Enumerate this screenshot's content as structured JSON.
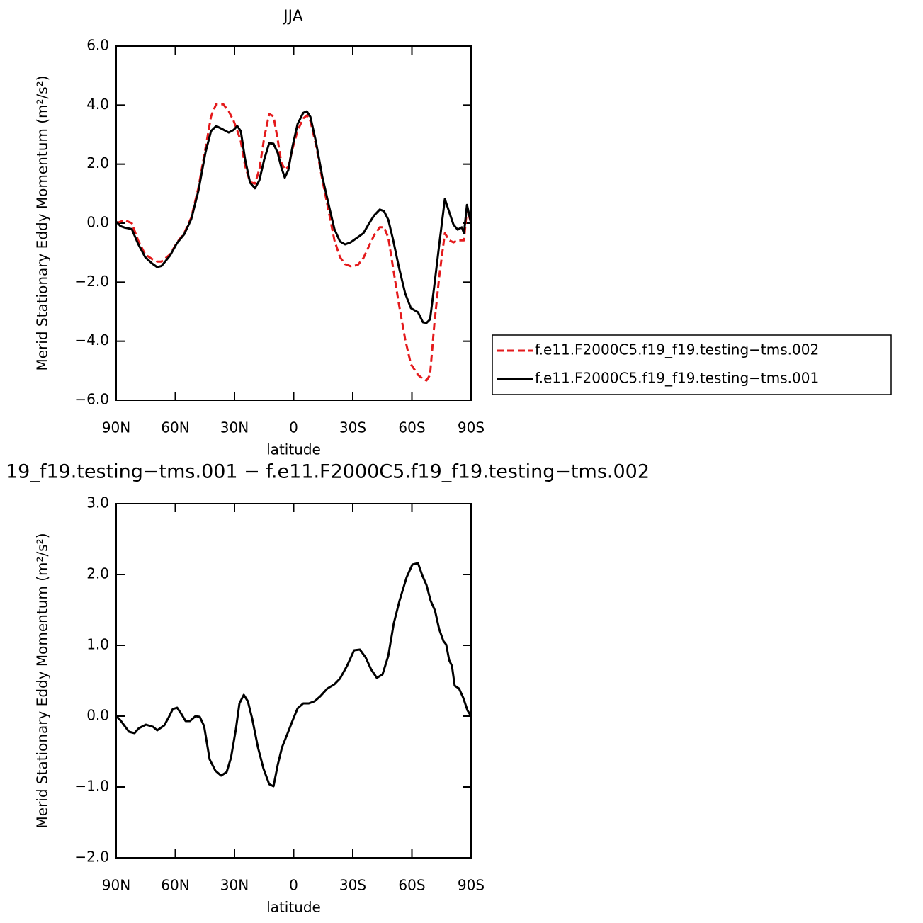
{
  "chart_data": [
    {
      "type": "line",
      "title": "JJA",
      "x_label": "latitude",
      "y_label": "Merid Stationary Eddy Momentum (m²/s²)",
      "xlim": [
        90,
        -90
      ],
      "xticks": [
        {
          "value": 90,
          "label": "90N"
        },
        {
          "value": 60,
          "label": "60N"
        },
        {
          "value": 30,
          "label": "30N"
        },
        0,
        {
          "value": -30,
          "label": "30S"
        },
        {
          "value": -60,
          "label": "60S"
        },
        {
          "value": -90,
          "label": "90S"
        }
      ],
      "ylim": [
        -6,
        6
      ],
      "yticks": [
        {
          "value": -6,
          "label": "−6.0"
        },
        {
          "value": -4,
          "label": "−4.0"
        },
        {
          "value": -2,
          "label": "−2.0"
        },
        {
          "value": 0,
          "label": "0.0"
        },
        {
          "value": 2,
          "label": "2.0"
        },
        {
          "value": 4,
          "label": "4.0"
        },
        {
          "value": 6,
          "label": "6.0"
        }
      ],
      "legend": "right",
      "x": [
        90,
        87.8,
        85.7,
        82.1,
        78.9,
        75.3,
        71.7,
        69.2,
        67.0,
        62.7,
        59.1,
        55.5,
        51.9,
        48.3,
        44.7,
        41.9,
        39.3,
        35.7,
        32.9,
        30.4,
        28.6,
        26.8,
        24.6,
        22.1,
        19.6,
        17.4,
        14.9,
        12.4,
        10.2,
        8.1,
        6.3,
        4.5,
        2.7,
        0.5,
        -2.0,
        -4.9,
        -6.7,
        -8.5,
        -11.3,
        -14.6,
        -18.2,
        -20.7,
        -23.5,
        -26.1,
        -28.9,
        -32.5,
        -35.4,
        -37.9,
        -40.8,
        -43.7,
        -45.8,
        -48.0,
        -50.5,
        -53.4,
        -56.6,
        -59.5,
        -63.1,
        -65.6,
        -67.4,
        -69.2,
        -71.3,
        -73.9,
        -76.7,
        -78.9,
        -81.1,
        -83.2,
        -85.3,
        -86.4,
        -87.9,
        -90
      ],
      "series": [
        {
          "name": "f.e11.F2000C5.f19_f19.testing−tms.002",
          "color": "#e41a1c",
          "dashed": true,
          "values": [
            0.0,
            0.05,
            0.1,
            0.0,
            -0.58,
            -1.06,
            -1.22,
            -1.3,
            -1.3,
            -1.06,
            -0.65,
            -0.34,
            0.19,
            1.2,
            2.54,
            3.62,
            4.03,
            4.03,
            3.79,
            3.46,
            3.14,
            2.78,
            1.94,
            1.39,
            1.34,
            1.82,
            2.9,
            3.7,
            3.62,
            2.83,
            2.06,
            1.82,
            1.9,
            2.54,
            3.14,
            3.55,
            3.65,
            3.46,
            2.66,
            1.46,
            0.26,
            -0.58,
            -1.15,
            -1.39,
            -1.46,
            -1.42,
            -1.18,
            -0.82,
            -0.41,
            -0.14,
            -0.14,
            -0.48,
            -1.54,
            -2.74,
            -3.94,
            -4.78,
            -5.14,
            -5.28,
            -5.33,
            -5.14,
            -3.46,
            -1.78,
            -0.34,
            -0.58,
            -0.65,
            -0.58,
            -0.58,
            -0.58,
            0.5,
            0.0
          ]
        },
        {
          "name": "f.e11.F2000C5.f19_f19.testing−tms.001",
          "color": "#000000",
          "dashed": false,
          "values": [
            0.05,
            -0.1,
            -0.15,
            -0.2,
            -0.7,
            -1.15,
            -1.37,
            -1.49,
            -1.45,
            -1.1,
            -0.67,
            -0.38,
            0.14,
            1.1,
            2.4,
            3.12,
            3.29,
            3.17,
            3.07,
            3.16,
            3.29,
            3.12,
            2.16,
            1.37,
            1.18,
            1.45,
            2.16,
            2.71,
            2.69,
            2.38,
            1.9,
            1.54,
            1.8,
            2.62,
            3.36,
            3.74,
            3.79,
            3.6,
            2.76,
            1.56,
            0.5,
            -0.2,
            -0.62,
            -0.72,
            -0.65,
            -0.48,
            -0.34,
            -0.05,
            0.26,
            0.46,
            0.41,
            0.12,
            -0.58,
            -1.49,
            -2.38,
            -2.88,
            -3.02,
            -3.36,
            -3.38,
            -3.26,
            -2.14,
            -0.7,
            0.82,
            0.38,
            -0.05,
            -0.22,
            -0.14,
            -0.34,
            0.62,
            0.0
          ]
        }
      ]
    },
    {
      "type": "line",
      "title": "19_f19.testing−tms.001 − f.e11.F2000C5.f19_f19.testing−tms.002",
      "x_label": "latitude",
      "y_label": "Merid Stationary Eddy Momentum (m²/s²)",
      "xlim": [
        90,
        -90
      ],
      "xticks": [
        {
          "value": 90,
          "label": "90N"
        },
        {
          "value": 60,
          "label": "60N"
        },
        {
          "value": 30,
          "label": "30N"
        },
        0,
        {
          "value": -30,
          "label": "30S"
        },
        {
          "value": -60,
          "label": "60S"
        },
        {
          "value": -90,
          "label": "90S"
        }
      ],
      "ylim": [
        -2,
        3
      ],
      "yticks": [
        {
          "value": -2,
          "label": "−2.0"
        },
        {
          "value": -1,
          "label": "−1.0"
        },
        {
          "value": 0,
          "label": "0.0"
        },
        {
          "value": 1,
          "label": "1.0"
        },
        {
          "value": 2,
          "label": "2.0"
        },
        {
          "value": 3,
          "label": "3.0"
        }
      ],
      "x": [
        90,
        87.8,
        85.7,
        83.5,
        80.7,
        78.5,
        74.9,
        71.3,
        69.2,
        65.6,
        63.4,
        61.3,
        59.1,
        56.9,
        54.8,
        52.6,
        49.8,
        47.6,
        45.4,
        42.6,
        39.7,
        36.8,
        34.0,
        31.8,
        29.3,
        27.5,
        25.3,
        23.2,
        21.0,
        18.1,
        15.3,
        12.4,
        10.2,
        8.1,
        5.9,
        3.0,
        0.2,
        -2.0,
        -4.9,
        -7.7,
        -10.6,
        -13.5,
        -17.1,
        -20.7,
        -23.5,
        -27.1,
        -30.7,
        -33.6,
        -36.5,
        -39.3,
        -42.2,
        -45.1,
        -48.0,
        -50.8,
        -53.7,
        -57.3,
        -60.2,
        -63.1,
        -65.2,
        -67.4,
        -69.5,
        -71.7,
        -73.8,
        -76.0,
        -77.4,
        -78.9,
        -80.3,
        -81.7,
        -83.9,
        -86.0,
        -88.2,
        -90
      ],
      "series": [
        {
          "color": "#000000",
          "dashed": false,
          "values": [
            0,
            -0.06,
            -0.14,
            -0.22,
            -0.24,
            -0.17,
            -0.12,
            -0.15,
            -0.2,
            -0.13,
            -0.02,
            0.1,
            0.12,
            0.03,
            -0.07,
            -0.07,
            0,
            -0.01,
            -0.14,
            -0.61,
            -0.77,
            -0.84,
            -0.79,
            -0.59,
            -0.19,
            0.18,
            0.3,
            0.21,
            -0.04,
            -0.44,
            -0.74,
            -0.96,
            -0.99,
            -0.69,
            -0.44,
            -0.24,
            -0.04,
            0.11,
            0.18,
            0.18,
            0.21,
            0.28,
            0.39,
            0.45,
            0.53,
            0.71,
            0.93,
            0.94,
            0.83,
            0.66,
            0.54,
            0.59,
            0.85,
            1.31,
            1.63,
            1.96,
            2.14,
            2.16,
            1.99,
            1.85,
            1.63,
            1.49,
            1.23,
            1.06,
            1.01,
            0.79,
            0.71,
            0.43,
            0.39,
            0.26,
            0.08,
            0
          ]
        }
      ]
    }
  ]
}
